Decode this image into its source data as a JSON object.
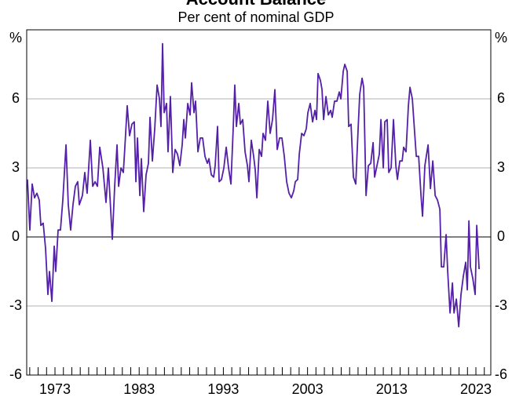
{
  "chart_data": {
    "type": "line",
    "title": "Account Balance",
    "subtitle": "Per cent of nominal GDP",
    "y_unit": "%",
    "x": [
      1969.73,
      1970.01,
      1970.29,
      1970.57,
      1970.85,
      1971.13,
      1971.32,
      1971.6,
      1971.88,
      1972.16,
      1972.35,
      1972.63,
      1972.91,
      1973.09,
      1973.37,
      1973.65,
      1973.93,
      1974.31,
      1974.58,
      1974.86,
      1975.14,
      1975.42,
      1975.7,
      1975.89,
      1976.26,
      1976.54,
      1976.82,
      1977.2,
      1977.48,
      1977.76,
      1978.04,
      1978.32,
      1978.69,
      1979.06,
      1979.34,
      1979.81,
      1980.09,
      1980.37,
      1980.56,
      1980.84,
      1981.12,
      1981.3,
      1981.58,
      1981.86,
      1982.14,
      1982.42,
      1982.61,
      1982.8,
      1983.08,
      1983.26,
      1983.54,
      1983.82,
      1984.1,
      1984.29,
      1984.57,
      1984.85,
      1985.13,
      1985.41,
      1985.59,
      1985.78,
      1985.97,
      1986.25,
      1986.43,
      1986.71,
      1986.99,
      1987.27,
      1987.55,
      1987.83,
      1988.11,
      1988.3,
      1988.49,
      1988.77,
      1989.05,
      1989.23,
      1989.51,
      1989.7,
      1989.98,
      1990.26,
      1990.54,
      1990.82,
      1991.1,
      1991.29,
      1991.57,
      1991.85,
      1992.03,
      1992.31,
      1992.5,
      1992.78,
      1993.06,
      1993.34,
      1993.62,
      1993.9,
      1994.18,
      1994.36,
      1994.55,
      1994.83,
      1995.02,
      1995.3,
      1995.58,
      1995.86,
      1996.04,
      1996.32,
      1996.6,
      1996.79,
      1996.98,
      1997.26,
      1997.54,
      1997.72,
      1998,
      1998.28,
      1998.56,
      1998.84,
      1999.12,
      1999.4,
      1999.68,
      1999.96,
      2000.24,
      2000.52,
      2000.8,
      2001.08,
      2001.36,
      2001.55,
      2001.83,
      2002.02,
      2002.3,
      2002.57,
      2002.85,
      2003.04,
      2003.32,
      2003.6,
      2003.88,
      2004.07,
      2004.25,
      2004.53,
      2004.72,
      2004.91,
      2005.19,
      2005.47,
      2005.75,
      2005.93,
      2006.21,
      2006.49,
      2006.77,
      2006.96,
      2007.24,
      2007.43,
      2007.71,
      2007.89,
      2008.17,
      2008.45,
      2008.73,
      2009.01,
      2009.2,
      2009.48,
      2009.67,
      2009.95,
      2010.23,
      2010.51,
      2010.79,
      2010.97,
      2011.25,
      2011.53,
      2011.72,
      2012,
      2012.18,
      2012.46,
      2012.65,
      2012.93,
      2013.21,
      2013.49,
      2013.68,
      2013.96,
      2014.24,
      2014.42,
      2014.7,
      2014.98,
      2015.17,
      2015.45,
      2015.73,
      2015.92,
      2016.2,
      2016.48,
      2016.66,
      2016.94,
      2017.32,
      2017.6,
      2017.88,
      2018.16,
      2018.44,
      2018.72,
      2018.9,
      2019.18,
      2019.46,
      2019.65,
      2019.93,
      2020.21,
      2020.4,
      2020.68,
      2020.96,
      2021.23,
      2021.51,
      2021.79,
      2021.98,
      2022.17,
      2022.35,
      2022.63,
      2022.91,
      2023.1,
      2023.38
    ],
    "series": [
      {
        "color": "#5420a8",
        "values": [
          2.5,
          0.3,
          2.3,
          1.7,
          1.9,
          1.6,
          0.5,
          0.6,
          -0.5,
          -2.5,
          -1.5,
          -2.8,
          -0.4,
          -1.5,
          0.3,
          0.3,
          1.6,
          4.0,
          1.4,
          0.3,
          1.4,
          2.2,
          2.4,
          1.4,
          1.8,
          2.8,
          1.9,
          4.2,
          2.2,
          2.4,
          2.2,
          3.9,
          3.0,
          1.5,
          3.0,
          -0.1,
          2.2,
          4.0,
          2.2,
          3.0,
          2.8,
          3.9,
          5.7,
          4.4,
          4.9,
          5.0,
          2.4,
          4.3,
          1.8,
          3.4,
          1.1,
          2.7,
          3.2,
          5.2,
          3.3,
          4.7,
          6.6,
          6.0,
          4.8,
          8.4,
          5.4,
          5.8,
          3.7,
          6.1,
          2.8,
          3.8,
          3.6,
          3.1,
          4.0,
          5.1,
          4.3,
          5.8,
          5.3,
          6.7,
          5.4,
          5.9,
          3.7,
          4.3,
          4.3,
          3.5,
          3.2,
          3.4,
          2.7,
          2.6,
          3.1,
          4.8,
          2.4,
          2.5,
          3.0,
          3.9,
          3.0,
          2.3,
          4.8,
          6.6,
          4.8,
          5.8,
          4.9,
          5.1,
          3.7,
          3.1,
          2.4,
          4.2,
          3.5,
          2.9,
          1.7,
          3.8,
          3.5,
          4.5,
          4.2,
          5.9,
          4.5,
          5.1,
          6.4,
          3.8,
          4.3,
          4.3,
          3.5,
          2.4,
          1.9,
          1.7,
          2.0,
          2.4,
          2.5,
          3.6,
          4.5,
          4.4,
          4.7,
          5.4,
          5.8,
          5.0,
          5.5,
          5.1,
          7.1,
          6.8,
          6.4,
          5.1,
          6.1,
          5.3,
          5.5,
          5.2,
          5.9,
          5.9,
          6.3,
          6.0,
          7.2,
          7.5,
          7.2,
          4.8,
          4.9,
          2.6,
          2.3,
          4.7,
          6.2,
          6.9,
          6.5,
          1.8,
          3.1,
          3.2,
          4.1,
          2.6,
          3.1,
          3.6,
          5.1,
          3.0,
          5.0,
          5.1,
          2.8,
          3.0,
          5.1,
          3.1,
          2.5,
          3.3,
          3.3,
          3.9,
          3.7,
          5.7,
          6.5,
          6.0,
          4.5,
          3.5,
          3.5,
          1.8,
          0.9,
          3.1,
          4.0,
          2.1,
          3.3,
          1.8,
          1.6,
          1.2,
          -1.3,
          -1.3,
          0.1,
          -1.5,
          -3.3,
          -2.0,
          -3.3,
          -2.7,
          -3.9,
          -2.5,
          -1.7,
          -1.1,
          -2.3,
          0.7,
          -1.3,
          -1.8,
          -2.5,
          0.5,
          -1.4
        ]
      }
    ],
    "xlim": [
      1969.64,
      2024.77
    ],
    "xticks": [
      1973,
      1983,
      1993,
      2003,
      2013,
      2023
    ],
    "xminor": [
      1970,
      1971,
      1972,
      1973,
      1974,
      1975,
      1976,
      1977,
      1978,
      1979,
      1980,
      1981,
      1982,
      1983,
      1984,
      1985,
      1986,
      1987,
      1988,
      1989,
      1990,
      1991,
      1992,
      1993,
      1994,
      1995,
      1996,
      1997,
      1998,
      1999,
      2000,
      2001,
      2002,
      2003,
      2004,
      2005,
      2006,
      2007,
      2008,
      2009,
      2010,
      2011,
      2012,
      2013,
      2014,
      2015,
      2016,
      2017,
      2018,
      2019,
      2020,
      2021,
      2022,
      2023,
      2024
    ],
    "ylim": [
      -6,
      9
    ],
    "yticks": [
      -6,
      -3,
      0,
      3,
      6
    ],
    "grid": true
  }
}
